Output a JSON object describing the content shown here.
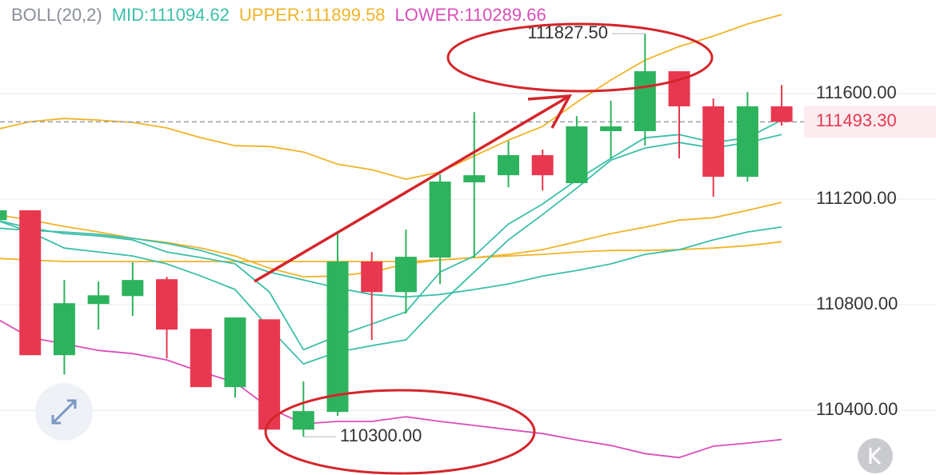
{
  "chart_data": {
    "type": "candlestick",
    "indicator": "BOLL(20,2)",
    "ylim": [
      110155,
      111955
    ],
    "yticks": [
      {
        "value": 111600,
        "label": "111600.00"
      },
      {
        "value": 111200,
        "label": "111200.00"
      },
      {
        "value": 110800,
        "label": "110800.00"
      },
      {
        "value": 110400,
        "label": "110400.00"
      }
    ],
    "grid": true,
    "up_color": "#2db35d",
    "down_color": "#e8384f",
    "open": [
      111121,
      111158,
      110609,
      110803,
      110833,
      110897,
      110709,
      110488,
      110745,
      110327,
      110394,
      110964,
      110848,
      110979,
      111264,
      111291,
      111367,
      111261,
      111458,
      111458,
      111685,
      111552,
      111285,
      111552
    ],
    "close": [
      111158,
      110609,
      110806,
      110836,
      110894,
      110706,
      110488,
      110752,
      110327,
      110397,
      110964,
      110848,
      110982,
      111267,
      111291,
      111367,
      111291,
      111476,
      111476,
      111685,
      111552,
      111285,
      111552,
      111493.3
    ],
    "high": [
      111158,
      111158,
      110894,
      110888,
      110961,
      110906,
      110709,
      110752,
      110745,
      110509,
      111073,
      111000,
      111085,
      111294,
      111530,
      111421,
      111388,
      111515,
      111573,
      111827.5,
      111685,
      111582,
      111606,
      111633
    ],
    "low": [
      111121,
      110609,
      110536,
      110706,
      110758,
      110597,
      110488,
      110448,
      110327,
      110300,
      110379,
      110667,
      110767,
      110879,
      110979,
      111245,
      111233,
      111261,
      111355,
      111403,
      111355,
      111209,
      111267,
      111479
    ],
    "series": [
      {
        "name": "MID:111094.62",
        "color": "#3cbfa8",
        "values": [
          111091,
          111082,
          111076,
          111067,
          111052,
          111033,
          111006,
          110967,
          110924,
          110894,
          110864,
          110839,
          110830,
          110839,
          110858,
          110879,
          110909,
          110930,
          110955,
          110991,
          111009,
          111046,
          111076,
          111094.62
        ]
      },
      {
        "name": "UPPER:111899.58",
        "color": "#f0b429",
        "values": [
          111464,
          111494,
          111506,
          111500,
          111491,
          111470,
          111433,
          111403,
          111400,
          111379,
          111333,
          111312,
          111276,
          111303,
          111364,
          111424,
          111476,
          111567,
          111652,
          111727,
          111779,
          111818,
          111864,
          111899.58
        ]
      },
      {
        "name": "LOWER:110289.66",
        "color": "#d94fb8",
        "values": [
          110749,
          110676,
          110652,
          110627,
          110615,
          110591,
          110546,
          110506,
          110409,
          110349,
          110358,
          110358,
          110376,
          110358,
          110343,
          110327,
          110312,
          110288,
          110267,
          110236,
          110221,
          110264,
          110276,
          110289.66
        ]
      },
      {
        "color": "#f0b429",
        "values": [
          111142,
          111121,
          111097,
          111076,
          111052,
          111036,
          111015,
          110985,
          110939,
          110906,
          110909,
          110924,
          110955,
          110970,
          110979,
          110991,
          111009,
          111039,
          111070,
          111094,
          111121,
          111130,
          111158,
          111188
        ]
      },
      {
        "color": "#f0b429",
        "values": [
          110976,
          110970,
          110964,
          110964,
          110964,
          110964,
          110964,
          110964,
          110964,
          110964,
          110964,
          110964,
          110964,
          110970,
          110979,
          110985,
          110991,
          111000,
          111006,
          111006,
          111009,
          111015,
          111024,
          111039
        ]
      },
      {
        "color": "#3cbfa8",
        "values": [
          111121,
          111091,
          111070,
          111061,
          111046,
          111000,
          110979,
          110955,
          110849,
          110630,
          110682,
          110727,
          110773,
          110924,
          110985,
          111106,
          111182,
          111273,
          111355,
          111433,
          111445,
          111415,
          111433,
          111500
        ]
      },
      {
        "color": "#3cbfa8",
        "values": [
          111121,
          111076,
          111015,
          111000,
          110985,
          110955,
          110909,
          110858,
          110712,
          110576,
          110621,
          110645,
          110667,
          110803,
          110924,
          111046,
          111142,
          111242,
          111348,
          111394,
          111415,
          111394,
          111415,
          111445
        ]
      }
    ],
    "last_price": {
      "value": 111493.3,
      "label": "111493.30"
    },
    "annotations": [
      {
        "value": 111827.5,
        "label": "111827.50",
        "index": 19
      },
      {
        "value": 110300,
        "label": "110300.00",
        "index": 9
      }
    ]
  }
}
